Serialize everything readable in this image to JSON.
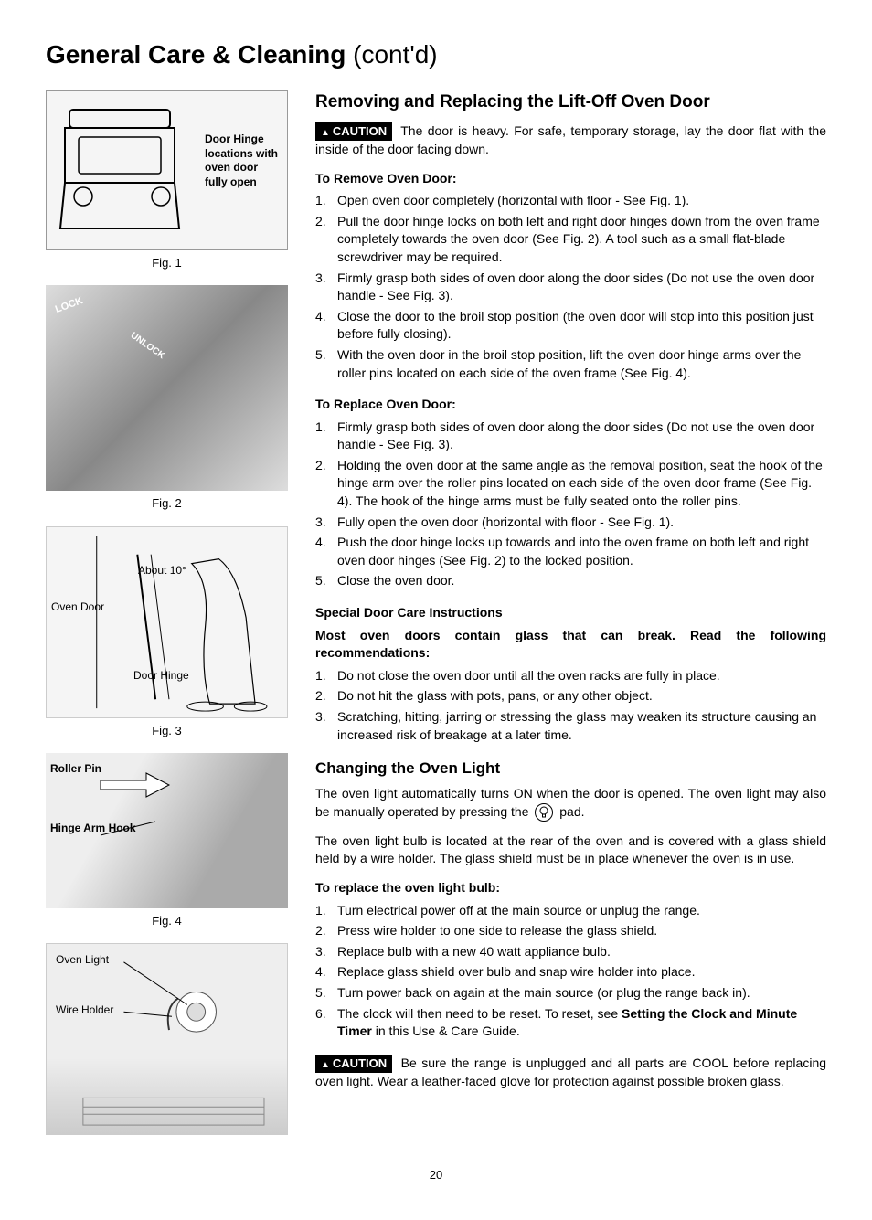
{
  "page_title_bold": "General Care & Cleaning",
  "page_title_light": "(cont'd)",
  "fig1": {
    "caption": "Fig. 1",
    "label": "Door Hinge locations with oven door fully open"
  },
  "fig2": {
    "caption": "Fig. 2",
    "label_lock": "LOCK",
    "label_unlock": "UNLOCK"
  },
  "fig3": {
    "caption": "Fig. 3",
    "label_about": "About 10°",
    "label_oven_door": "Oven Door",
    "label_door_hinge": "Door Hinge"
  },
  "fig4": {
    "caption": "Fig. 4",
    "label_roller_pin": "Roller Pin",
    "label_hinge_arm": "Hinge Arm Hook"
  },
  "fig5": {
    "label_oven_light": "Oven Light",
    "label_wire_holder": "Wire Holder"
  },
  "section1": {
    "heading": "Removing and Replacing the Lift-Off Oven Door",
    "caution_label": "CAUTION",
    "caution_text": "The door is heavy. For safe, temporary storage, lay the door flat with the inside of the door facing down.",
    "remove_heading": "To Remove Oven Door:",
    "remove_steps": [
      "Open oven door completely (horizontal with floor - See Fig. 1).",
      "Pull the door hinge locks on both left and right door hinges down from the oven frame completely towards the oven door (See Fig. 2). A tool such as a small flat-blade screwdriver may be required.",
      "Firmly grasp both sides of oven door along the door sides (Do not use the oven door handle - See Fig. 3).",
      "Close the door to the broil stop position (the oven door will stop into this position just before fully closing).",
      "With the oven door in the broil stop position, lift the oven door hinge arms over the roller pins located on each side of the oven frame (See Fig. 4)."
    ],
    "replace_heading": "To Replace Oven Door:",
    "replace_steps": [
      "Firmly grasp both sides of oven door along the door sides (Do not use the oven door handle - See Fig. 3).",
      "Holding the oven door at the same angle as the removal position, seat the hook of the hinge arm over the roller pins located on each side of the oven door frame (See Fig. 4). The hook of the hinge arms must be fully seated onto the roller pins.",
      "Fully open the oven door (horizontal with floor - See Fig. 1).",
      "Push the door hinge locks up towards and into the oven frame on both left and right oven door hinges (See Fig. 2) to the locked position.",
      "Close the oven door."
    ],
    "special_heading": "Special Door Care Instructions",
    "special_intro": "Most oven doors contain glass that can break.  Read the following recommendations:",
    "special_steps": [
      "Do not close the oven door until all the oven racks are fully in place.",
      "Do not hit the glass with pots, pans, or any other object.",
      "Scratching, hitting, jarring or stressing the glass may weaken its structure causing an increased risk of breakage at a later time."
    ]
  },
  "section2": {
    "heading": "Changing the Oven Light",
    "para1a": "The oven light automatically turns ON when the door is opened. The oven light may also be manually operated by pressing the",
    "para1b": "pad.",
    "bulb_icon": "💡",
    "para2": "The oven light bulb is located at the rear of the oven and is covered with a glass shield held by a wire holder. The glass shield must be in place whenever the oven is in use.",
    "replace_heading": "To replace the oven light bulb:",
    "replace_steps_pre": [
      "Turn electrical power off at the main source or unplug the range.",
      "Press wire holder to one side to release the glass shield.",
      "Replace bulb with a new 40 watt appliance bulb.",
      "Replace glass shield over bulb and snap wire holder into place.",
      "Turn power back on again at the main source (or plug the range back in)."
    ],
    "step6_a": "The clock will then need to be reset. To reset, see ",
    "step6_bold": "Setting the Clock and Minute Timer",
    "step6_b": " in this Use & Care Guide.",
    "caution_label": "CAUTION",
    "caution_text": "Be sure the range is unplugged and all parts are COOL before replacing oven light. Wear a leather-faced glove for protection against possible broken glass."
  },
  "page_number": "20",
  "colors": {
    "text": "#000000",
    "background": "#ffffff",
    "caution_bg": "#000000",
    "caution_fg": "#ffffff",
    "placeholder_bg": "#f5f5f5"
  }
}
